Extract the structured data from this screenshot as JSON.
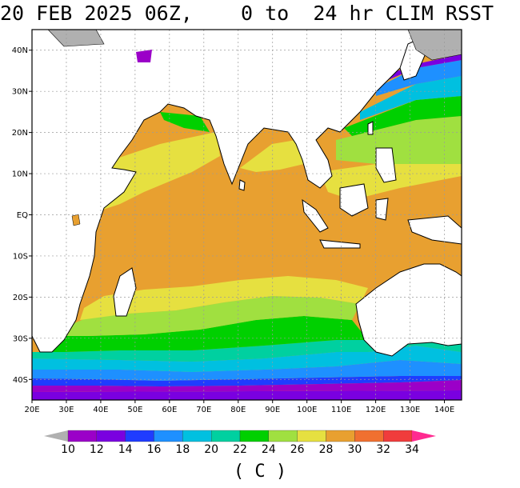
{
  "title": "20 FEB 2025 06Z,    0 to  24 hr CLIM RSST",
  "units_label": "( C )",
  "lat_ticks": [
    "40N",
    "30N",
    "20N",
    "10N",
    "EQ",
    "10S",
    "20S",
    "30S",
    "40S"
  ],
  "lon_ticks": [
    "20E",
    "30E",
    "40E",
    "50E",
    "60E",
    "70E",
    "80E",
    "90E",
    "100E",
    "110E",
    "120E",
    "130E",
    "140E"
  ],
  "colorbar": {
    "labels": [
      "10",
      "12",
      "14",
      "16",
      "18",
      "20",
      "22",
      "24",
      "26",
      "28",
      "30",
      "32",
      "34"
    ],
    "colors": [
      "#b0b0b0",
      "#9b00c8",
      "#7a00e0",
      "#1f3cff",
      "#1e90ff",
      "#00c0e0",
      "#00d0a0",
      "#00d000",
      "#a0e040",
      "#e6e040",
      "#e8a030",
      "#f07030",
      "#f03c3c",
      "#ff2a90"
    ]
  },
  "chart_data": {
    "type": "heatmap",
    "variable": "RSST",
    "lon_range": [
      20,
      145
    ],
    "lat_range": [
      -45,
      45
    ],
    "grid": true
  }
}
